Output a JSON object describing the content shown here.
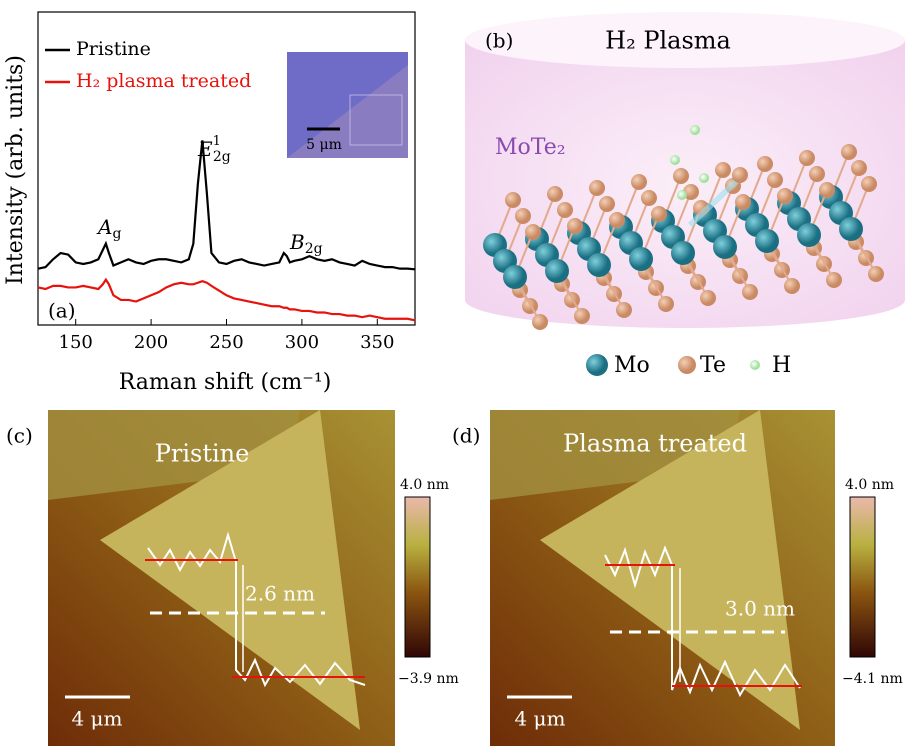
{
  "chart_data": {
    "type": "line",
    "panel_label": "(a)",
    "xlabel": "Raman shift (cm⁻¹)",
    "ylabel": "Intensity (arb. units)",
    "xlim": [
      125,
      375
    ],
    "xticks": [
      150,
      200,
      250,
      300,
      350
    ],
    "ylim": [
      0,
      10
    ],
    "x": [
      125,
      130,
      135,
      140,
      145,
      150,
      155,
      160,
      165,
      168,
      170,
      172,
      175,
      180,
      185,
      190,
      195,
      200,
      205,
      210,
      215,
      220,
      225,
      228,
      231,
      234,
      237,
      240,
      245,
      250,
      255,
      260,
      265,
      270,
      275,
      280,
      285,
      288,
      290,
      292,
      295,
      300,
      305,
      310,
      315,
      320,
      325,
      330,
      335,
      340,
      345,
      350,
      355,
      360,
      365,
      370,
      375
    ],
    "series": [
      {
        "name": "Pristine",
        "color": "#000000",
        "values": [
          1.8,
          1.85,
          2.1,
          2.3,
          2.25,
          2.0,
          1.95,
          2.0,
          2.1,
          2.4,
          2.6,
          2.3,
          1.9,
          2.0,
          2.1,
          2.0,
          1.95,
          2.05,
          2.1,
          2.1,
          2.05,
          2.0,
          2.1,
          2.6,
          4.5,
          5.9,
          4.2,
          2.3,
          2.0,
          1.95,
          2.05,
          2.1,
          2.0,
          1.95,
          1.9,
          1.95,
          2.0,
          2.3,
          2.2,
          2.0,
          2.05,
          2.1,
          2.2,
          2.1,
          2.05,
          2.1,
          2.0,
          1.95,
          1.9,
          2.05,
          1.95,
          1.9,
          1.85,
          1.85,
          1.8,
          1.8,
          1.78
        ]
      },
      {
        "name": "H₂ plasma treated",
        "color": "#e8120c",
        "values": [
          1.2,
          1.15,
          1.25,
          1.25,
          1.2,
          1.2,
          1.25,
          1.2,
          1.15,
          1.3,
          1.45,
          1.3,
          0.95,
          0.8,
          0.8,
          0.75,
          0.85,
          0.95,
          1.05,
          1.2,
          1.3,
          1.35,
          1.3,
          1.3,
          1.35,
          1.4,
          1.35,
          1.25,
          1.1,
          0.95,
          0.85,
          0.8,
          0.75,
          0.7,
          0.65,
          0.6,
          0.6,
          0.55,
          0.55,
          0.5,
          0.5,
          0.45,
          0.45,
          0.4,
          0.4,
          0.35,
          0.35,
          0.3,
          0.3,
          0.25,
          0.3,
          0.25,
          0.2,
          0.2,
          0.2,
          0.2,
          0.15
        ]
      }
    ],
    "annotations": [
      {
        "label": "A",
        "sub": "g"
      },
      {
        "label": "E",
        "sub": "2g",
        "sup": "1"
      },
      {
        "label": "B",
        "sub": "2g"
      }
    ],
    "inset_scale": "5 μm"
  },
  "panel_b": {
    "label": "(b)",
    "title": "H₂ Plasma",
    "material": "MoTe₂",
    "legend": [
      "Mo",
      "Te",
      "H"
    ]
  },
  "panel_c": {
    "label": "(c)",
    "title": "Pristine",
    "step": "2.6 nm",
    "scale": "4 μm",
    "colorbar_max": "4.0 nm",
    "colorbar_min": "−3.9 nm"
  },
  "panel_d": {
    "label": "(d)",
    "title": "Plasma treated",
    "step": "3.0 nm",
    "scale": "4 μm",
    "colorbar_max": "4.0 nm",
    "colorbar_min": "−4.1 nm"
  }
}
